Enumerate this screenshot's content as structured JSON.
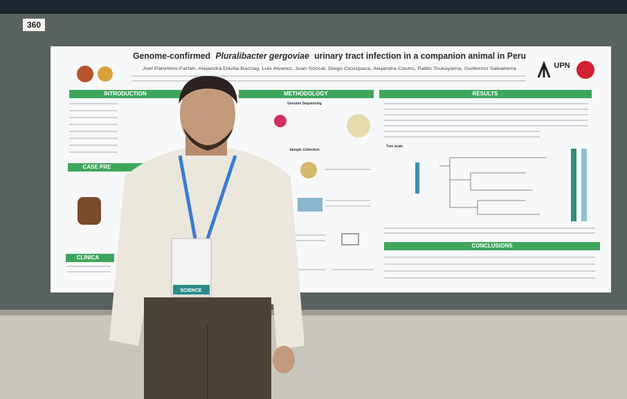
{
  "board_number": "360",
  "poster": {
    "title_parts": [
      "Genome-confirmed",
      "Pluralibacter gergoviae",
      "urinary tract infection in a companion animal in Peru"
    ],
    "authors": "Joel Palomino-Farfah, Alejandra Dávila-Barclay, Luis Alvarez, Juan Soccal, Diego Cicuspaca, Alejandra Castro, Pablo Tsukayama, Guillermo Salvatierra",
    "logo": "UPN",
    "sections": {
      "introduction": "INTRODUCTION",
      "methodology": "METHODOLOGY",
      "results": "RESULTS",
      "case": "CASE PRE",
      "clinical": "CLINICA",
      "conclusions": "CONCLUSIONS"
    },
    "subheadings": [
      "Genome Sequencing",
      "Sample Collection",
      "Tree scale"
    ]
  },
  "badge": {
    "text": "SCIENCE"
  }
}
